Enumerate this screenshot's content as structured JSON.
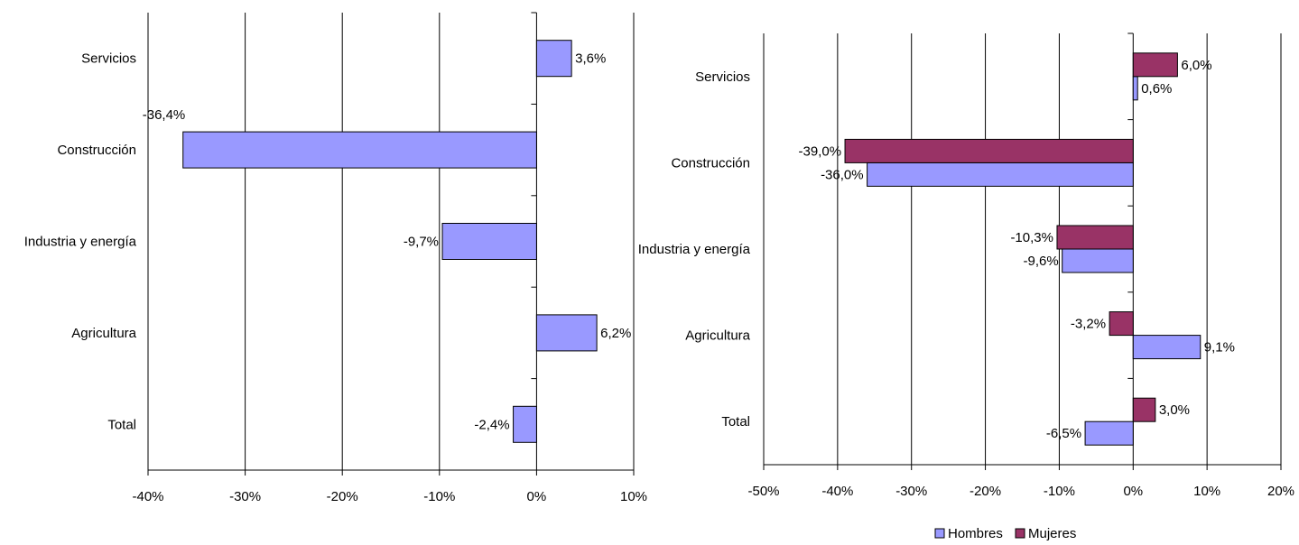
{
  "chart_data": [
    {
      "type": "bar",
      "orientation": "horizontal",
      "categories": [
        "Servicios",
        "Construcción",
        "Industria y energía",
        "Agricultura",
        "Total"
      ],
      "series": [
        {
          "values": [
            3.6,
            -36.4,
            -9.7,
            6.2,
            -2.4
          ],
          "color": "#9999ff"
        }
      ],
      "data_labels": [
        "3,6%",
        "-36,4%",
        "-9,7%",
        "6,2%",
        "-2,4%"
      ],
      "xlim": [
        -40,
        10
      ],
      "xticks": [
        -40,
        -30,
        -20,
        -10,
        0,
        10
      ],
      "xtick_labels": [
        "-40%",
        "-30%",
        "-20%",
        "-10%",
        "0%",
        "10%"
      ],
      "grid": "vertical",
      "legend": "none",
      "title": "",
      "xlabel": "",
      "ylabel": ""
    },
    {
      "type": "bar",
      "orientation": "horizontal",
      "categories": [
        "Servicios",
        "Construcción",
        "Industria y energía",
        "Agricultura",
        "Total"
      ],
      "series": [
        {
          "name": "Hombres",
          "values": [
            0.6,
            -36.0,
            -9.6,
            9.1,
            -6.5
          ],
          "color": "#9999ff",
          "data_labels": [
            "0,6%",
            "-36,0%",
            "-9,6%",
            "9,1%",
            "-6,5%"
          ]
        },
        {
          "name": "Mujeres",
          "values": [
            6.0,
            -39.0,
            -10.3,
            -3.2,
            3.0
          ],
          "color": "#993366",
          "data_labels": [
            "6,0%",
            "-39,0%",
            "-10,3%",
            "-3,2%",
            "3,0%"
          ]
        }
      ],
      "xlim": [
        -50,
        20
      ],
      "xticks": [
        -50,
        -40,
        -30,
        -20,
        -10,
        0,
        10,
        20
      ],
      "xtick_labels": [
        "-50%",
        "-40%",
        "-30%",
        "-20%",
        "-10%",
        "0%",
        "10%",
        "20%"
      ],
      "grid": "vertical",
      "legend": "bottom",
      "title": "",
      "xlabel": "",
      "ylabel": ""
    }
  ]
}
